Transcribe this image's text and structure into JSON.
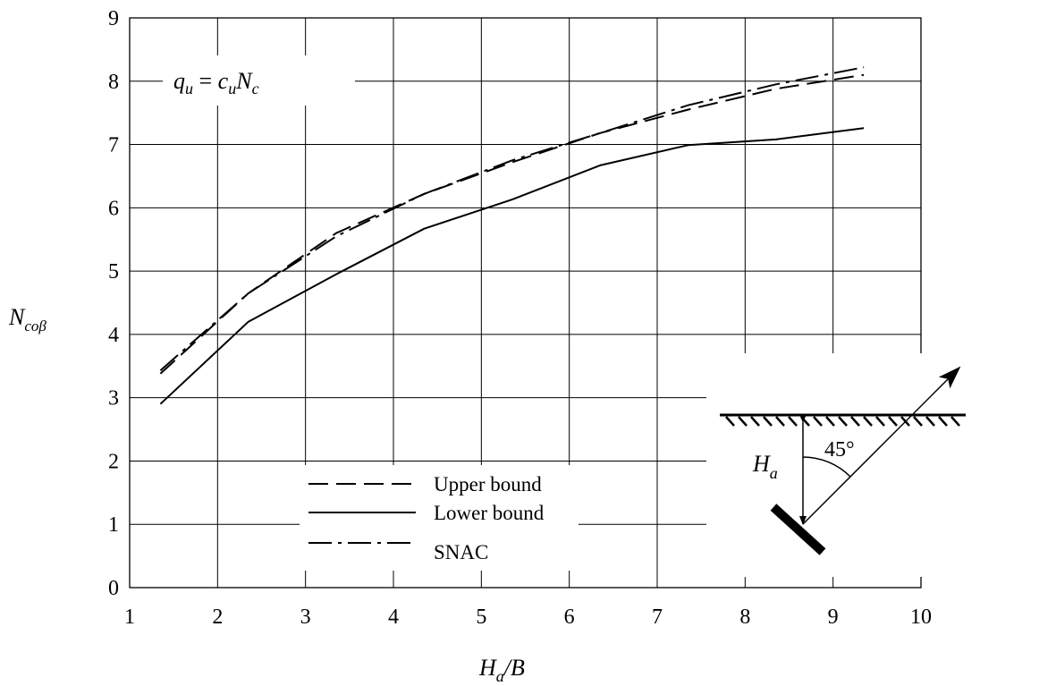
{
  "chart_data": {
    "type": "line",
    "xlabel": {
      "main": "H",
      "sub": "a",
      "rest": "/B"
    },
    "ylabel": {
      "main": "N",
      "sub": "coβ"
    },
    "xlim": [
      1,
      10
    ],
    "ylim": [
      0,
      9
    ],
    "xticks": [
      "1",
      "2",
      "3",
      "4",
      "5",
      "6",
      "7",
      "8",
      "9",
      "10"
    ],
    "yticks": [
      "0",
      "1",
      "2",
      "3",
      "4",
      "5",
      "6",
      "7",
      "8",
      "9"
    ],
    "grid": true,
    "formula": {
      "q": "q",
      "q_sub": "u",
      "eq": " = ",
      "c": "c",
      "c_sub": "u",
      "N": "N",
      "N_sub": "c"
    },
    "series": [
      {
        "name": "Upper bound",
        "style": "dashed",
        "color": "#000000",
        "x": [
          1.35,
          2.35,
          3.35,
          4.35,
          5.35,
          6.35,
          7.35,
          8.35,
          9.35
        ],
        "y": [
          3.38,
          4.65,
          5.6,
          6.22,
          6.72,
          7.18,
          7.55,
          7.88,
          8.1
        ]
      },
      {
        "name": "Lower bound",
        "style": "solid",
        "color": "#000000",
        "x": [
          1.35,
          2.35,
          3.35,
          4.35,
          5.35,
          6.35,
          7.35,
          8.35,
          9.35
        ],
        "y": [
          2.9,
          4.2,
          4.95,
          5.67,
          6.13,
          6.67,
          6.99,
          7.08,
          7.26
        ]
      },
      {
        "name": "SNAC",
        "style": "dashdot",
        "color": "#000000",
        "x": [
          1.35,
          2.35,
          3.35,
          4.35,
          5.35,
          6.35,
          7.35,
          8.35,
          9.35
        ],
        "y": [
          3.43,
          4.65,
          5.55,
          6.22,
          6.75,
          7.18,
          7.62,
          7.95,
          8.22
        ]
      }
    ],
    "inset": {
      "depth_label": "H",
      "depth_sub": "a",
      "angle_label": "45°"
    }
  }
}
